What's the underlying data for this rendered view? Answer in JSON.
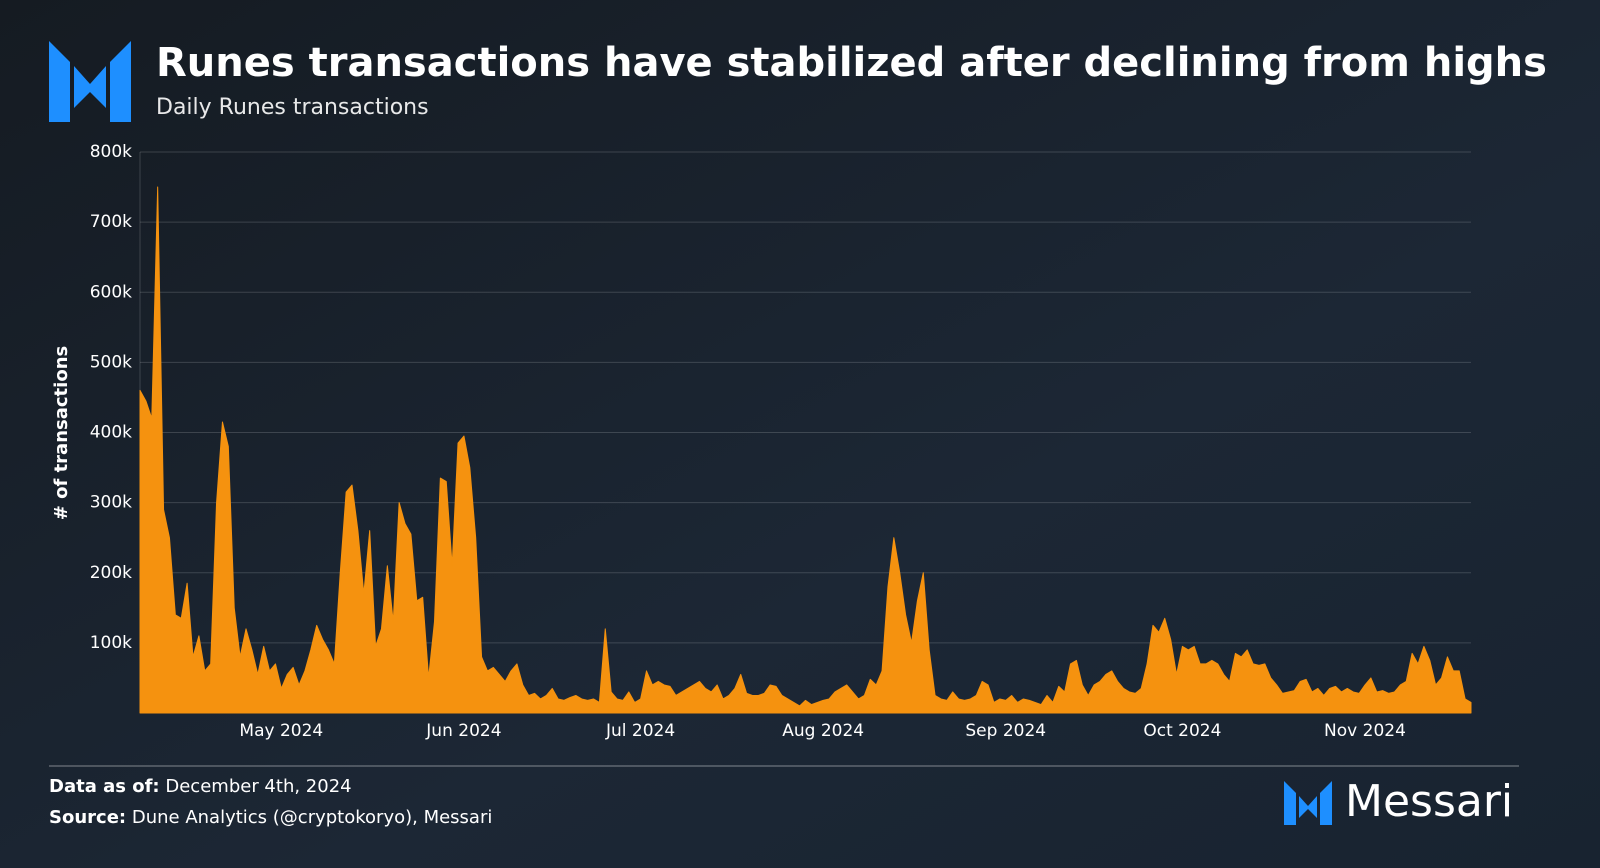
{
  "chart_data": {
    "type": "area",
    "title": "Runes transactions have stabilized after declining from highs",
    "subtitle": "Daily Runes transactions",
    "y_label": "# of transactions",
    "color": "#f5920f",
    "grid": true,
    "ylim": [
      0,
      800000
    ],
    "yticks": [
      {
        "value": 100000,
        "label": "100k"
      },
      {
        "value": 200000,
        "label": "200k"
      },
      {
        "value": 300000,
        "label": "300k"
      },
      {
        "value": 400000,
        "label": "400k"
      },
      {
        "value": 500000,
        "label": "500k"
      },
      {
        "value": 600000,
        "label": "600k"
      },
      {
        "value": 700000,
        "label": "700k"
      },
      {
        "value": 800000,
        "label": "800k"
      }
    ],
    "categories": [
      null,
      null,
      null,
      null,
      null,
      null,
      null,
      null,
      null,
      null,
      null,
      null,
      null,
      null,
      null,
      null,
      null,
      null,
      null,
      null,
      null,
      null,
      null,
      null,
      "May 2024",
      null,
      null,
      null,
      null,
      null,
      null,
      null,
      null,
      null,
      null,
      null,
      null,
      null,
      null,
      null,
      null,
      null,
      null,
      null,
      null,
      null,
      null,
      null,
      null,
      null,
      null,
      null,
      null,
      null,
      null,
      "Jun 2024",
      null,
      null,
      null,
      null,
      null,
      null,
      null,
      null,
      null,
      null,
      null,
      null,
      null,
      null,
      null,
      null,
      null,
      null,
      null,
      null,
      null,
      null,
      null,
      null,
      null,
      null,
      null,
      null,
      null,
      "Jul 2024",
      null,
      null,
      null,
      null,
      null,
      null,
      null,
      null,
      null,
      null,
      null,
      null,
      null,
      null,
      null,
      null,
      null,
      null,
      null,
      null,
      null,
      null,
      null,
      null,
      null,
      null,
      null,
      null,
      null,
      null,
      "Aug 2024",
      null,
      null,
      null,
      null,
      null,
      null,
      null,
      null,
      null,
      null,
      null,
      null,
      null,
      null,
      null,
      null,
      null,
      null,
      null,
      null,
      null,
      null,
      null,
      null,
      null,
      null,
      null,
      null,
      null,
      null,
      "Sep 2024",
      null,
      null,
      null,
      null,
      null,
      null,
      null,
      null,
      null,
      null,
      null,
      null,
      null,
      null,
      null,
      null,
      null,
      null,
      null,
      null,
      null,
      null,
      null,
      null,
      null,
      null,
      null,
      null,
      null,
      "Oct 2024",
      null,
      null,
      null,
      null,
      null,
      null,
      null,
      null,
      null,
      null,
      null,
      null,
      null,
      null,
      null,
      null,
      null,
      null,
      null,
      null,
      null,
      null,
      null,
      null,
      null,
      null,
      null,
      null,
      null,
      null,
      "Nov 2024",
      null,
      null,
      null,
      null,
      null,
      null,
      null,
      null,
      null,
      null,
      null,
      null,
      null,
      null,
      null,
      null,
      null,
      null
    ],
    "values": [
      460000,
      445000,
      420000,
      750000,
      290000,
      250000,
      140000,
      135000,
      185000,
      80000,
      110000,
      60000,
      70000,
      300000,
      415000,
      380000,
      150000,
      80000,
      120000,
      90000,
      55000,
      95000,
      60000,
      70000,
      35000,
      55000,
      65000,
      40000,
      60000,
      90000,
      125000,
      105000,
      90000,
      70000,
      200000,
      315000,
      325000,
      260000,
      170000,
      260000,
      95000,
      120000,
      210000,
      130000,
      300000,
      270000,
      255000,
      160000,
      165000,
      50000,
      130000,
      335000,
      330000,
      210000,
      385000,
      395000,
      350000,
      250000,
      80000,
      60000,
      65000,
      55000,
      45000,
      60000,
      70000,
      40000,
      25000,
      28000,
      20000,
      25000,
      35000,
      20000,
      18000,
      22000,
      25000,
      20000,
      18000,
      20000,
      15000,
      120000,
      30000,
      20000,
      18000,
      30000,
      15000,
      20000,
      60000,
      40000,
      45000,
      40000,
      38000,
      25000,
      30000,
      35000,
      40000,
      45000,
      35000,
      30000,
      40000,
      20000,
      25000,
      35000,
      55000,
      28000,
      25000,
      25000,
      28000,
      40000,
      38000,
      25000,
      20000,
      15000,
      10000,
      18000,
      12000,
      15000,
      18000,
      20000,
      30000,
      35000,
      40000,
      30000,
      20000,
      25000,
      48000,
      40000,
      60000,
      180000,
      250000,
      200000,
      140000,
      100000,
      160000,
      200000,
      90000,
      25000,
      20000,
      18000,
      30000,
      20000,
      18000,
      20000,
      25000,
      45000,
      40000,
      15000,
      20000,
      18000,
      25000,
      15000,
      20000,
      18000,
      15000,
      12000,
      25000,
      15000,
      38000,
      30000,
      70000,
      75000,
      40000,
      25000,
      40000,
      45000,
      55000,
      60000,
      45000,
      35000,
      30000,
      28000,
      35000,
      70000,
      125000,
      115000,
      135000,
      105000,
      55000,
      95000,
      90000,
      95000,
      70000,
      70000,
      75000,
      70000,
      55000,
      45000,
      85000,
      80000,
      90000,
      70000,
      68000,
      70000,
      50000,
      40000,
      28000,
      30000,
      32000,
      45000,
      48000,
      30000,
      35000,
      25000,
      35000,
      38000,
      30000,
      35000,
      30000,
      28000,
      40000,
      50000,
      30000,
      32000,
      28000,
      30000,
      40000,
      45000,
      85000,
      70000,
      95000,
      75000,
      40000,
      50000,
      80000,
      60000,
      60000,
      20000,
      15000
    ]
  },
  "footer": {
    "data_as_of_label": "Data as of:",
    "data_as_of": "December 4th, 2024",
    "source_label": "Source:",
    "source": "Dune Analytics (@cryptokoryo), Messari",
    "brand": "Messari"
  }
}
